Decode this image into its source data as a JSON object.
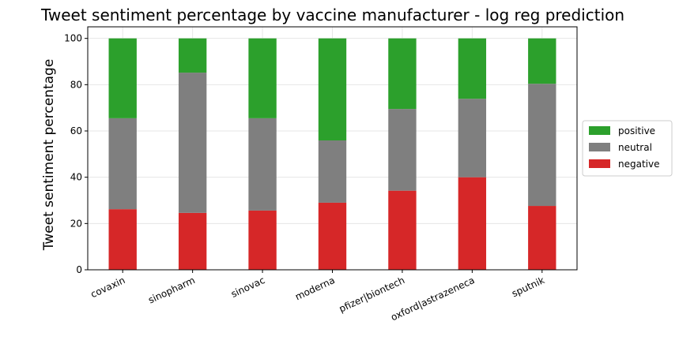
{
  "chart_data": {
    "type": "bar",
    "stacked": true,
    "title": "Tweet sentiment percentage by vaccine manufacturer - log reg prediction",
    "xlabel": "",
    "ylabel": "Tweet sentiment percentage",
    "categories": [
      "covaxin",
      "sinopharm",
      "sinovac",
      "moderna",
      "pfizer|biontech",
      "oxford|astrazeneca",
      "sputnik"
    ],
    "series": [
      {
        "name": "negative",
        "color": "#d62728",
        "values": [
          26.2,
          24.6,
          25.6,
          29.0,
          34.2,
          40.0,
          27.6
        ]
      },
      {
        "name": "neutral",
        "color": "#7f7f7f",
        "values": [
          39.3,
          60.6,
          39.9,
          26.9,
          35.3,
          33.9,
          52.8
        ]
      },
      {
        "name": "positive",
        "color": "#2ca02c",
        "values": [
          34.5,
          14.8,
          34.5,
          44.1,
          30.5,
          26.1,
          19.6
        ]
      }
    ],
    "legend_order": [
      "positive",
      "neutral",
      "negative"
    ],
    "yticks": [
      0,
      20,
      40,
      60,
      80,
      100
    ],
    "ylim": [
      0,
      105
    ],
    "grid": true,
    "legend_position": "center-right outside"
  }
}
